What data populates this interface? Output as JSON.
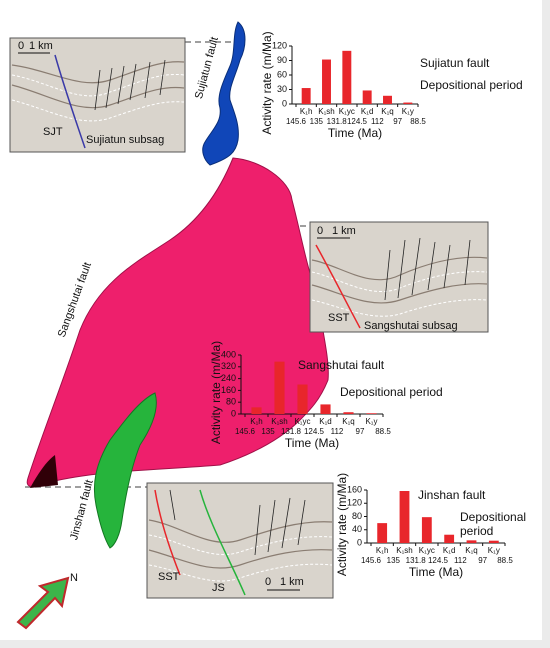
{
  "chart_data": [
    {
      "type": "bar",
      "title": "Sujiatun fault",
      "annotation": [
        "Depositional period"
      ],
      "y_label": "Activity rate (m/Ma)",
      "x_label": "Time (Ma)",
      "categories": [
        "K₁h",
        "K₁sh",
        "K₁yc",
        "K₁d",
        "K₁q",
        "K₁y"
      ],
      "boundaries": [
        145.6,
        135,
        131.8,
        124.5,
        112,
        97,
        88.5
      ],
      "values": [
        33,
        92,
        110,
        28,
        17,
        3
      ],
      "color": "#e8262b",
      "ylim": [
        0,
        120
      ],
      "yticks": [
        0,
        30,
        60,
        90,
        120
      ]
    },
    {
      "type": "bar",
      "title": "Sangshutai fault",
      "annotation": [
        "Depositional period"
      ],
      "y_label": "Activity rate (m/Ma)",
      "x_label": "Time (Ma)",
      "categories": [
        "K₁h",
        "K₁sh",
        "K₁yc",
        "K₁d",
        "K₁q",
        "K₁y"
      ],
      "boundaries": [
        145.6,
        135,
        131.8,
        124.5,
        112,
        97,
        88.5
      ],
      "values": [
        45,
        355,
        200,
        65,
        12,
        5
      ],
      "color": "#e8262b",
      "ylim": [
        0,
        400
      ],
      "yticks": [
        0,
        80,
        160,
        240,
        320,
        400
      ]
    },
    {
      "type": "bar",
      "title": "Jinshan fault",
      "annotation": [
        "Depositional",
        "period"
      ],
      "y_label": "Activity rate (m/Ma)",
      "x_label": "Time (Ma)",
      "categories": [
        "K₁h",
        "K₁sh",
        "K₁yc",
        "K₁d",
        "K₁q",
        "K₁y"
      ],
      "boundaries": [
        145.6,
        135,
        131.8,
        124.5,
        112,
        97,
        88.5
      ],
      "values": [
        60,
        157,
        78,
        25,
        8,
        7
      ],
      "color": "#e8262b",
      "ylim": [
        0,
        160
      ],
      "yticks": [
        0,
        40,
        80,
        120,
        160
      ]
    }
  ],
  "labels": {
    "sujiatun_fault": "Sujiatun fault",
    "sangshutai_fault": "Sangshutai fault",
    "jinshan_fault": "Jinshan fault",
    "scale_zero": "0",
    "scale_km": "1 km",
    "sjt": "SJT",
    "sujiatun_subsag": "Sujiatun subsag",
    "sst": "SST",
    "sangshutai_subsag": "Sangshutai subsag",
    "js": "JS",
    "north": "N"
  }
}
